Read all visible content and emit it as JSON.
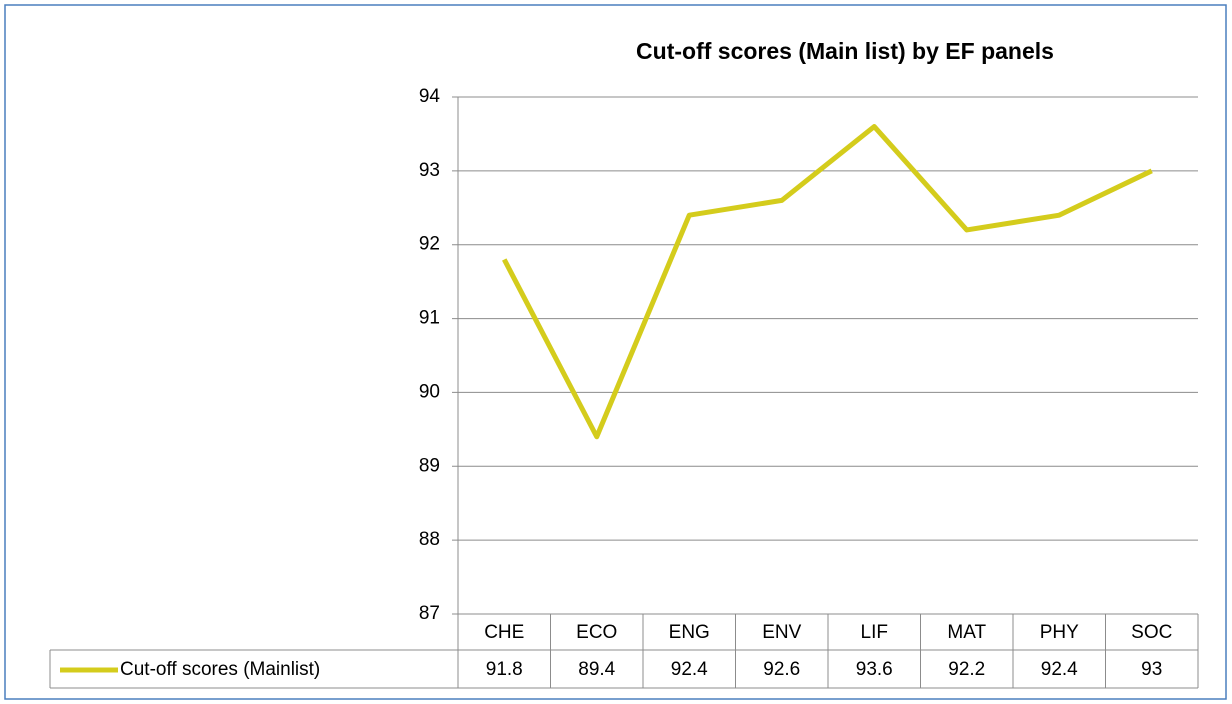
{
  "chart_data": {
    "type": "line",
    "title": "Cut-off scores (Main list) by EF panels",
    "categories": [
      "CHE",
      "ECO",
      "ENG",
      "ENV",
      "LIF",
      "MAT",
      "PHY",
      "SOC"
    ],
    "series": [
      {
        "name": "Cut-off scores (Mainlist)",
        "color": "#d4cc1c",
        "values": [
          91.8,
          89.4,
          92.4,
          92.6,
          93.6,
          92.2,
          92.4,
          93
        ]
      }
    ],
    "ylim": [
      87,
      94
    ],
    "yticks": [
      87,
      88,
      89,
      90,
      91,
      92,
      93,
      94
    ],
    "grid": true,
    "data_table": true
  }
}
